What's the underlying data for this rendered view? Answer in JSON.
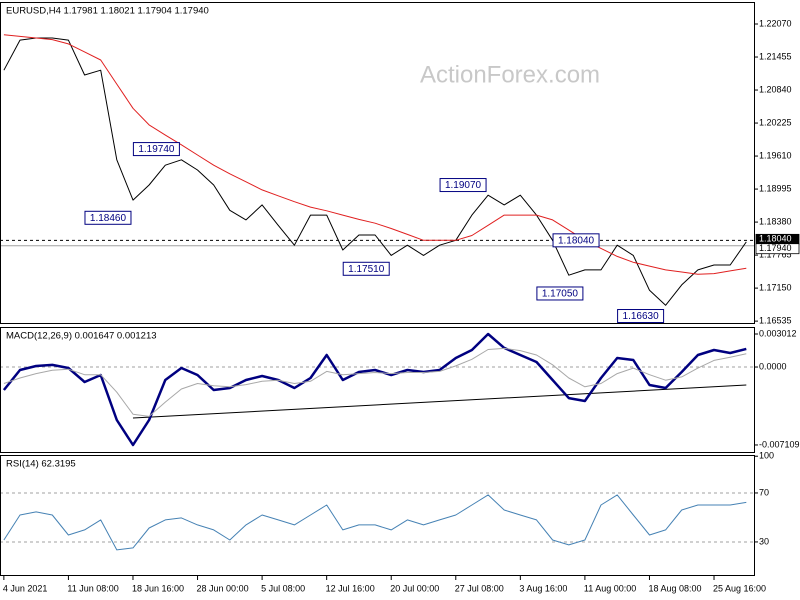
{
  "chart_data": [
    {
      "type": "line",
      "title": "EURUSD,H4 1.17981 1.18021 1.17904 1.17940",
      "watermark": "ActionForex.com",
      "ylim": [
        1.165,
        1.2248
      ],
      "yticks": [
        {
          "value": 1.2207,
          "label": "1.22070"
        },
        {
          "value": 1.21455,
          "label": "1.21455"
        },
        {
          "value": 1.2084,
          "label": "1.20840"
        },
        {
          "value": 1.20225,
          "label": "1.20225"
        },
        {
          "value": 1.1961,
          "label": "1.19610"
        },
        {
          "value": 1.18995,
          "label": "1.18995"
        },
        {
          "value": 1.1838,
          "label": "1.18380"
        },
        {
          "value": 1.17765,
          "label": "1.17765"
        },
        {
          "value": 1.1715,
          "label": "1.17150"
        },
        {
          "value": 1.16535,
          "label": "1.16535"
        }
      ],
      "series": [
        {
          "color": "#000000",
          "width": 1,
          "values": [
            1.2121,
            1.2177,
            1.2181,
            1.2181,
            1.2177,
            1.2112,
            1.2121,
            1.1954,
            1.1879,
            1.1907,
            1.1944,
            1.1954,
            1.1935,
            1.1907,
            1.186,
            1.1842,
            1.187,
            1.1832,
            1.1795,
            1.1851,
            1.1851,
            1.1786,
            1.1814,
            1.1814,
            1.1776,
            1.1795,
            1.1776,
            1.1795,
            1.1804,
            1.1851,
            1.1888,
            1.187,
            1.1888,
            1.1851,
            1.1804,
            1.1739,
            1.1749,
            1.1749,
            1.1795,
            1.1776,
            1.1711,
            1.1683,
            1.1721,
            1.1749,
            1.1758,
            1.1758,
            1.1801
          ]
        },
        {
          "color": "#e02020",
          "width": 1,
          "values": [
            1.2187,
            1.2184,
            1.2181,
            1.2178,
            1.217,
            1.2155,
            1.214,
            1.2095,
            1.205,
            1.2019,
            1.2,
            1.1982,
            1.1963,
            1.1944,
            1.1928,
            1.1913,
            1.1898,
            1.1887,
            1.1876,
            1.1866,
            1.1859,
            1.1851,
            1.1843,
            1.1836,
            1.1826,
            1.1815,
            1.1804,
            1.1804,
            1.1804,
            1.1813,
            1.1832,
            1.1851,
            1.1851,
            1.1851,
            1.1842,
            1.1823,
            1.1804,
            1.1789,
            1.1774,
            1.1763,
            1.1756,
            1.1749,
            1.1745,
            1.1741,
            1.1742,
            1.1747,
            1.1752
          ]
        }
      ],
      "annotations": [
        {
          "label": "1.19740",
          "value": 1.1974,
          "index": 11
        },
        {
          "label": "1.18460",
          "value": 1.1846,
          "index": 8
        },
        {
          "label": "1.19070",
          "value": 1.1907,
          "index": 30
        },
        {
          "label": "1.18040",
          "value": 1.1804,
          "index": 37
        },
        {
          "label": "1.17510",
          "value": 1.1751,
          "index": 24
        },
        {
          "label": "1.17050",
          "value": 1.1705,
          "index": 36
        },
        {
          "label": "1.16630",
          "value": 1.1663,
          "index": 41
        }
      ],
      "price_lines": [
        {
          "value": 1.1804,
          "label": "1.18040",
          "dashed": true
        },
        {
          "value": 1.1794,
          "label": "1.17940",
          "dashed": false
        }
      ]
    },
    {
      "type": "line",
      "title": "MACD(12,26,9) 0.001647 0.001213",
      "ylim": [
        -0.00775,
        0.00365
      ],
      "yticks": [
        0.003012,
        {
          "value": 0,
          "label": "0.0000"
        },
        -0.007109
      ],
      "levels": [
        0
      ],
      "series": [
        {
          "color": "#000080",
          "width": 2.5,
          "values": [
            -0.0021,
            -0.00027,
            9e-05,
            0.00019,
            -9e-05,
            -0.00137,
            -0.00073,
            -0.00483,
            -0.00711,
            -0.00483,
            -0.00118,
            -9e-05,
            -0.00073,
            -0.0021,
            -0.00191,
            -0.00118,
            -0.00082,
            -0.00118,
            -0.00191,
            -0.001,
            0.0011,
            -0.00118,
            -0.00045,
            -0.00027,
            -0.00073,
            -0.00027,
            -0.00045,
            -0.00027,
            0.00082,
            0.00155,
            0.00301,
            0.00174,
            0.0011,
            0.00046,
            -0.00118,
            -0.00283,
            -0.0031,
            -0.001,
            0.00082,
            0.00064,
            -0.00164,
            -0.00191,
            -0.00045,
            0.0011,
            0.00155,
            0.00128,
            0.00165
          ]
        },
        {
          "color": "#a8a8a8",
          "width": 1,
          "values": [
            -0.0015,
            -0.001,
            -0.0006,
            -0.0003,
            -0.0002,
            -0.0007,
            -0.0007,
            -0.0023,
            -0.0043,
            -0.0045,
            -0.0032,
            -0.002,
            -0.0015,
            -0.0017,
            -0.0018,
            -0.0016,
            -0.0013,
            -0.0012,
            -0.0015,
            -0.0013,
            -0.0004,
            -0.0007,
            -0.0006,
            -0.0005,
            -0.0006,
            -0.0005,
            -0.0005,
            -0.0004,
            0.0001,
            0.0007,
            0.0016,
            0.0017,
            0.0015,
            0.0011,
            0.0002,
            -0.001,
            -0.0018,
            -0.0015,
            -0.0006,
            -0.0001,
            -0.0007,
            -0.0012,
            -0.0009,
            -0.0001,
            0.0006,
            0.0009,
            0.00121
          ]
        }
      ],
      "trendline": {
        "x": [
          8,
          46
        ],
        "values": [
          -0.00465,
          -0.00164
        ]
      }
    },
    {
      "type": "line",
      "title": "RSI(14) 62.3195",
      "ylim": [
        3,
        101
      ],
      "yticks": [
        100,
        70,
        30
      ],
      "levels": [
        70,
        30
      ],
      "series": [
        {
          "color": "#4682b4",
          "width": 1,
          "values": [
            31.6,
            52.0,
            54.5,
            52.0,
            35.7,
            39.8,
            48.0,
            23.5,
            25.1,
            41.4,
            48.0,
            49.6,
            43.9,
            39.8,
            31.6,
            43.9,
            52.0,
            48.0,
            43.9,
            52.0,
            60.2,
            39.8,
            43.9,
            43.9,
            39.8,
            48.0,
            43.9,
            48.0,
            52.0,
            60.2,
            68.4,
            56.1,
            52.0,
            48.0,
            31.6,
            27.6,
            31.6,
            60.2,
            68.4,
            52.0,
            35.7,
            39.8,
            56.1,
            60.2,
            60.2,
            60.2,
            62.3
          ]
        }
      ],
      "categories": [
        "4 Jun 2021",
        null,
        null,
        null,
        "11 Jun 08:00",
        null,
        null,
        null,
        "18 Jun 16:00",
        null,
        null,
        null,
        "28 Jun 00:00",
        null,
        null,
        null,
        "5 Jul 08:00",
        null,
        null,
        null,
        "12 Jul 16:00",
        null,
        null,
        null,
        "20 Jul 00:00",
        null,
        null,
        null,
        "27 Jul 08:00",
        null,
        null,
        null,
        "3 Aug 16:00",
        null,
        null,
        null,
        "11 Aug 00:00",
        null,
        null,
        null,
        "18 Aug 08:00",
        null,
        null,
        null,
        "25 Aug 16:00",
        null,
        null
      ]
    }
  ]
}
